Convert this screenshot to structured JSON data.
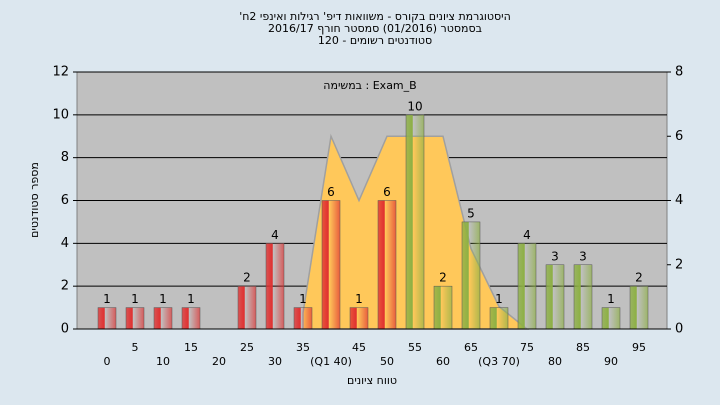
{
  "chart_data": {
    "type": "bar",
    "title": [
      "'היסטוגרמת ציונים בקורס - משוואות דיפ' רגילות ואינפי 2ח",
      "בסמסטר  (01/2016)  סמסטר חורף 2016/17",
      "סטודנטים רשומים - 120"
    ],
    "annotation": "במשימה : Exam_B",
    "ylabel": "מספר סטודנטים",
    "xlabel": "טווח ציונים",
    "categories": [
      "0",
      "5",
      "10",
      "15",
      "20",
      "25",
      "30",
      "35",
      "(Q1 40)",
      "45",
      "50",
      "55",
      "60",
      "65",
      "(Q3 70)",
      "75",
      "80",
      "85",
      "90",
      "95"
    ],
    "values": [
      1,
      1,
      1,
      1,
      0,
      2,
      4,
      1,
      6,
      1,
      6,
      10,
      2,
      5,
      1,
      4,
      3,
      3,
      1,
      2
    ],
    "colors": [
      "#e03030",
      "#e03030",
      "#e03030",
      "#e03030",
      "#e03030",
      "#e03030",
      "#e03030",
      "#e03030",
      "#e03030",
      "#e03030",
      "#e03030",
      "#8db044",
      "#8db044",
      "#8db044",
      "#8db044",
      "#8db044",
      "#8db044",
      "#8db044",
      "#8db044",
      "#8db044"
    ],
    "area": {
      "axis": "y2",
      "color": "#ffc85a",
      "values": [
        null,
        null,
        null,
        null,
        null,
        null,
        null,
        0.5,
        6,
        4,
        6,
        6,
        6,
        2.5,
        0.7,
        0,
        null,
        null,
        null,
        null
      ]
    },
    "ylim": [
      0,
      12
    ],
    "yticks": [
      0,
      2,
      4,
      6,
      8,
      10,
      12
    ],
    "y2lim": [
      0,
      8
    ],
    "y2ticks": [
      0,
      2,
      4,
      6,
      8
    ],
    "grid": true
  }
}
